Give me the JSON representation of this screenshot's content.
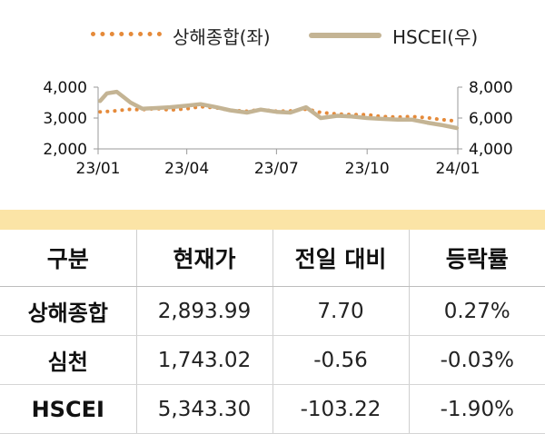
{
  "chart_data": {
    "type": "line",
    "series": [
      {
        "name": "상해종합(좌)",
        "axis": "left",
        "style": "dotted",
        "color": "#e58a3a",
        "x": [
          "2023-01-03",
          "2023-01-15",
          "2023-02-01",
          "2023-02-15",
          "2023-03-01",
          "2023-03-15",
          "2023-04-01",
          "2023-04-15",
          "2023-05-01",
          "2023-05-15",
          "2023-06-01",
          "2023-06-15",
          "2023-07-01",
          "2023-07-15",
          "2023-08-01",
          "2023-08-15",
          "2023-09-01",
          "2023-09-15",
          "2023-10-01",
          "2023-10-15",
          "2023-11-01",
          "2023-11-15",
          "2023-12-01",
          "2023-12-15",
          "2023-12-31"
        ],
        "values": [
          3200,
          3220,
          3280,
          3270,
          3310,
          3260,
          3300,
          3370,
          3330,
          3250,
          3220,
          3270,
          3220,
          3230,
          3290,
          3180,
          3130,
          3110,
          3110,
          3050,
          3030,
          3050,
          3010,
          2950,
          2900
        ]
      },
      {
        "name": "HSCEI(우)",
        "axis": "right",
        "style": "solid",
        "color": "#c4b494",
        "x": [
          "2023-01-03",
          "2023-01-10",
          "2023-01-20",
          "2023-01-27",
          "2023-02-03",
          "2023-02-15",
          "2023-03-01",
          "2023-03-15",
          "2023-04-01",
          "2023-04-15",
          "2023-05-01",
          "2023-05-15",
          "2023-06-01",
          "2023-06-15",
          "2023-07-01",
          "2023-07-15",
          "2023-07-31",
          "2023-08-15",
          "2023-09-01",
          "2023-09-15",
          "2023-10-01",
          "2023-10-15",
          "2023-11-01",
          "2023-11-15",
          "2023-12-01",
          "2023-12-15",
          "2023-12-31"
        ],
        "values": [
          7100,
          7600,
          7700,
          7350,
          7000,
          6600,
          6650,
          6700,
          6800,
          6900,
          6700,
          6500,
          6350,
          6550,
          6400,
          6350,
          6700,
          6000,
          6150,
          6100,
          6000,
          5950,
          5900,
          5900,
          5700,
          5550,
          5350
        ]
      }
    ],
    "y_left": {
      "ylim": [
        2000,
        4000
      ],
      "ticks": [
        "2,000",
        "3,000",
        "4,000"
      ],
      "tick_values": [
        2000,
        3000,
        4000
      ]
    },
    "y_right": {
      "ylim": [
        4000,
        8000
      ],
      "ticks": [
        "4,000",
        "6,000",
        "8,000"
      ],
      "tick_values": [
        4000,
        6000,
        8000
      ]
    },
    "x_axis": {
      "range": [
        "2023-01-01",
        "2024-01-01"
      ],
      "ticks": [
        "23/01",
        "23/04",
        "23/07",
        "23/10",
        "24/01"
      ],
      "tick_dates": [
        "2023-01-01",
        "2023-04-01",
        "2023-07-01",
        "2023-10-01",
        "2024-01-01"
      ]
    },
    "legend": "top",
    "grid": false
  },
  "table": {
    "headers": [
      "구분",
      "현재가",
      "전일 대비",
      "등락률"
    ],
    "rows": [
      [
        "상해종합",
        "2,893.99",
        "7.70",
        "0.27%"
      ],
      [
        "심천",
        "1,743.02",
        "-0.56",
        "-0.03%"
      ],
      [
        "HSCEI",
        "5,343.30",
        "-103.22",
        "-1.90%"
      ]
    ]
  }
}
